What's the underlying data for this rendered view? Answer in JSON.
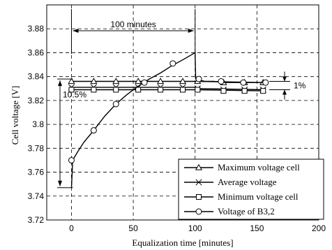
{
  "chart_data": {
    "type": "line",
    "xlabel": "Equalization time [minutes]",
    "ylabel": "Cell voltage [V]",
    "xlim": [
      -20,
      200
    ],
    "ylim": [
      3.72,
      3.9
    ],
    "x_ticks": [
      0,
      50,
      100,
      150,
      200
    ],
    "y_ticks": [
      3.72,
      3.74,
      3.76,
      3.78,
      3.8,
      3.82,
      3.84,
      3.86,
      3.88
    ],
    "x_tick_labels": [
      "0",
      "50",
      "100",
      "150",
      "200"
    ],
    "y_tick_labels": [
      "3.72",
      "3.74",
      "3.76",
      "3.78",
      "3.8",
      "3.82",
      "3.84",
      "3.86",
      "3.88"
    ],
    "grid": true,
    "legend_position": "bottom-right",
    "series": [
      {
        "name": "Maximum voltage cell",
        "marker": "triangle",
        "x": [
          0,
          100,
          100.5,
          157
        ],
        "y": [
          3.836,
          3.836,
          3.836,
          3.835
        ],
        "marker_x": [
          0,
          18,
          36,
          54,
          72,
          90,
          102,
          123,
          140,
          155
        ],
        "marker_y": [
          3.836,
          3.836,
          3.836,
          3.836,
          3.836,
          3.836,
          3.836,
          3.835,
          3.835,
          3.835
        ]
      },
      {
        "name": "Average voltage",
        "marker": "x",
        "x": [
          0,
          100,
          101,
          157
        ],
        "y": [
          3.831,
          3.831,
          3.83,
          3.829
        ],
        "marker_x": [
          0,
          18,
          36,
          54,
          72,
          90,
          102,
          123,
          140,
          155
        ],
        "marker_y": [
          3.831,
          3.831,
          3.831,
          3.831,
          3.831,
          3.831,
          3.83,
          3.829,
          3.829,
          3.829
        ]
      },
      {
        "name": "Minimum voltage cell",
        "marker": "square",
        "x": [
          0,
          100,
          101,
          157
        ],
        "y": [
          3.829,
          3.829,
          3.829,
          3.828
        ],
        "marker_x": [
          0,
          18,
          36,
          54,
          72,
          90,
          102,
          123,
          140,
          155
        ],
        "marker_y": [
          3.829,
          3.829,
          3.829,
          3.829,
          3.829,
          3.829,
          3.829,
          3.828,
          3.828,
          3.828
        ]
      },
      {
        "name": "Voltage of B3,2",
        "marker": "circle",
        "x": [
          0,
          1,
          5,
          10,
          18,
          27,
          36,
          45,
          54,
          63,
          72,
          81,
          90,
          100,
          100.5,
          103,
          108,
          115,
          125,
          135,
          145,
          157
        ],
        "y": [
          3.747,
          3.77,
          3.777,
          3.785,
          3.795,
          3.807,
          3.817,
          3.825,
          3.832,
          3.838,
          3.843,
          3.849,
          3.854,
          3.86,
          3.838,
          3.837,
          3.836,
          3.836,
          3.835,
          3.835,
          3.835,
          3.835
        ],
        "marker_x": [
          0,
          18,
          36,
          59,
          82,
          103,
          121,
          139,
          157
        ],
        "marker_y": [
          3.77,
          3.795,
          3.817,
          3.835,
          3.851,
          3.838,
          3.836,
          3.835,
          3.835
        ]
      }
    ],
    "annotations": {
      "duration_label": "100 minutes",
      "spread_before_label": "10.5%",
      "spread_after_label": "1%"
    }
  }
}
